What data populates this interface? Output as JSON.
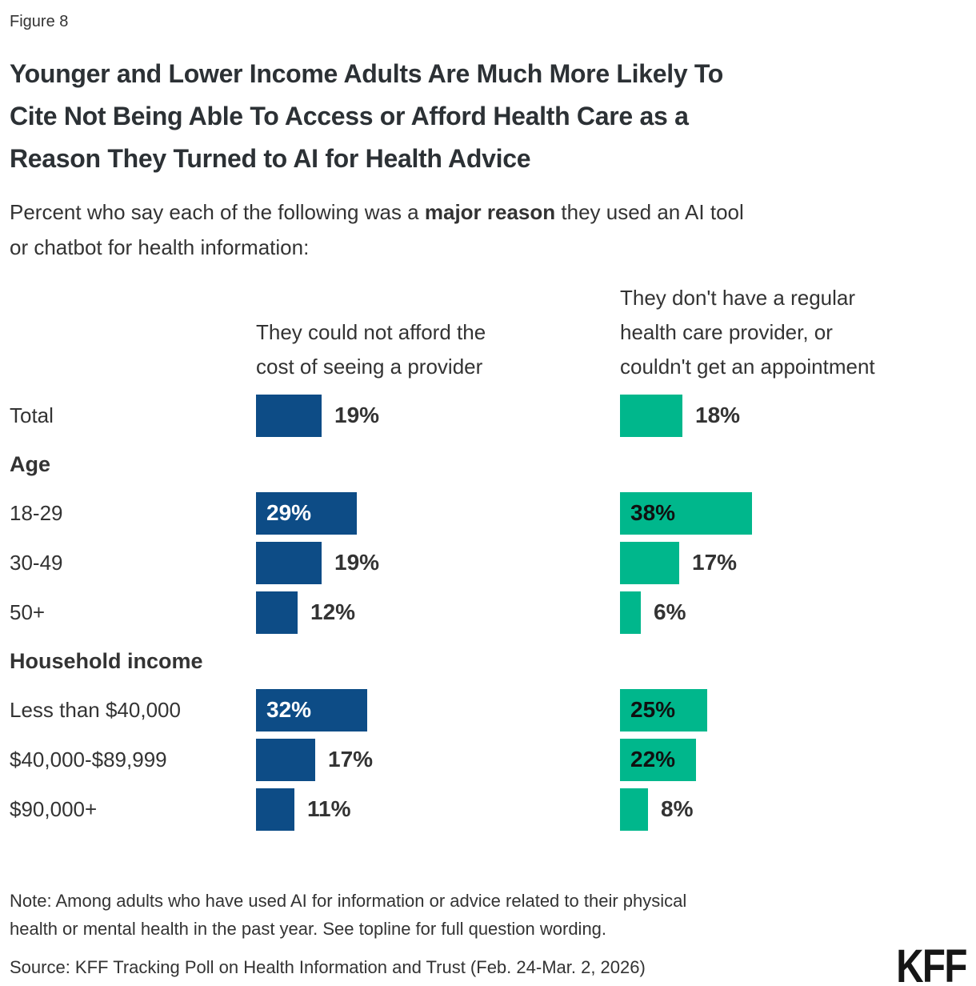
{
  "figure_label": "Figure 8",
  "title_lines": [
    "Younger and Lower Income Adults Are Much More Likely To",
    "Cite Not Being Able To Access or Afford Health Care as a",
    "Reason They Turned to AI for Health Advice"
  ],
  "subtitle": {
    "line1_prefix": "Percent who say each of the following was a ",
    "line1_bold": "major reason",
    "line1_suffix": " they used an AI tool",
    "line2": "or chatbot for health information:"
  },
  "chart_data": {
    "type": "bar",
    "orientation": "horizontal",
    "value_unit": "%",
    "label_inside_min_value": 20,
    "series": [
      {
        "name": "They could not afford the cost of seeing a provider",
        "header_lines": [
          "They could not afford the",
          "cost of seeing a provider"
        ],
        "color": "#0D4C86",
        "label_color_inside": "#FFFFFF"
      },
      {
        "name": "They don't have a regular health care provider, or couldn't get an appointment",
        "header_lines": [
          "They don't have a regular",
          "health care provider, or",
          "couldn't get an appointment"
        ],
        "color": "#00B78C",
        "label_color_inside": "#101010"
      }
    ],
    "rows": [
      {
        "type": "data",
        "label": "Total",
        "values": [
          19,
          18
        ]
      },
      {
        "type": "section",
        "label": "Age"
      },
      {
        "type": "data",
        "label": "18-29",
        "values": [
          29,
          38
        ]
      },
      {
        "type": "data",
        "label": "30-49",
        "values": [
          19,
          17
        ]
      },
      {
        "type": "data",
        "label": "50+",
        "values": [
          12,
          6
        ]
      },
      {
        "type": "section",
        "label": "Household income"
      },
      {
        "type": "data",
        "label": "Less than $40,000",
        "values": [
          32,
          25
        ]
      },
      {
        "type": "data",
        "label": "$40,000-$89,999",
        "values": [
          17,
          22
        ]
      },
      {
        "type": "data",
        "label": "$90,000+",
        "values": [
          11,
          8
        ]
      }
    ]
  },
  "note_lines": [
    "Note: Among adults who have used AI for information or advice related to their physical",
    "health or mental health in the past year. See topline for full question wording."
  ],
  "source": "Source: KFF Tracking Poll on Health Information and Trust (Feb. 24-Mar. 2, 2026)",
  "logo_text": "KFF",
  "colors": {
    "series1_blue": "#0D4C86",
    "series2_green": "#00B78C",
    "text": "#333333",
    "title_text": "#2C3135",
    "background": "#FFFFFF"
  }
}
